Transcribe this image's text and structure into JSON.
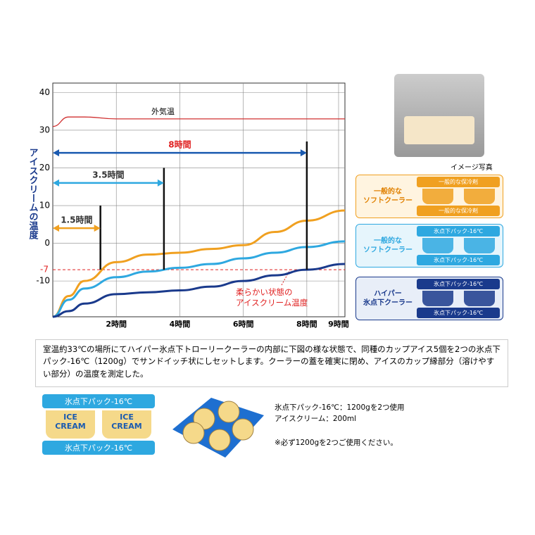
{
  "chart_data": {
    "type": "line",
    "y_label": "アイスクリームの温度",
    "x": [
      0,
      0.5,
      1,
      2,
      3,
      4,
      5,
      6,
      7,
      8,
      9.2
    ],
    "xlim": [
      0,
      9.2
    ],
    "ylim": [
      -19.5,
      42.5
    ],
    "xticks": [
      {
        "value": 2,
        "label": "2時間"
      },
      {
        "value": 4,
        "label": "4時間"
      },
      {
        "value": 6,
        "label": "6時間"
      },
      {
        "value": 8,
        "label": "8時間"
      },
      {
        "value": 9,
        "label": "9時間"
      }
    ],
    "yticks": [
      -10,
      0,
      10,
      20,
      30,
      40
    ],
    "grid": true,
    "reference": {
      "value": -7,
      "label": "-7",
      "color": "#e02020",
      "annotation": "柔らかい状態の\nアイスクリーム温度"
    },
    "series": [
      {
        "name": "外気温",
        "color": "#d03030",
        "values": [
          31,
          33.5,
          33.5,
          33,
          33,
          33,
          33,
          33,
          33,
          33,
          33
        ]
      },
      {
        "name": "一般的な\nソフトクーラー",
        "color": "#f0a020",
        "values": [
          -19.5,
          -14,
          -10,
          -5,
          -3,
          -2.5,
          -1.5,
          -0.5,
          3,
          6,
          8.7
        ],
        "packs": [
          "一般的な保冷剤",
          "一般的な保冷剤"
        ]
      },
      {
        "name": "一般的な\nソフトクーラー",
        "color": "#2ea8e0",
        "values": [
          -19.5,
          -15,
          -12,
          -9,
          -7.5,
          -6.5,
          -5.5,
          -4,
          -2.5,
          -1,
          0.5
        ],
        "packs": [
          "氷点下パック-16℃",
          "氷点下パック-16℃"
        ]
      },
      {
        "name": "ハイパー\n氷点下クーラー",
        "color": "#1a3a8c",
        "values": [
          -19.5,
          -18,
          -16,
          -13.5,
          -13,
          -12.5,
          -11.5,
          -10,
          -8.5,
          -7,
          -5.5
        ],
        "packs": [
          "氷点下パック-16℃",
          "氷点下パック-16℃"
        ]
      }
    ],
    "durations": [
      {
        "label": "1.5時間",
        "hours": 1.5,
        "top": 10,
        "arrow_y": 4,
        "color": "#f0a020"
      },
      {
        "label": "3.5時間",
        "hours": 3.5,
        "top": 20,
        "arrow_y": 16,
        "color": "#2ea8e0"
      },
      {
        "label": "8時間",
        "hours": 8,
        "top": 27,
        "arrow_y": 24,
        "color": "#1a5ab0",
        "label_color": "#e02020"
      }
    ]
  },
  "photo_caption": "イメージ写真",
  "description": "室温約33℃の場所にてハイパー氷点下トローリークーラーの内部に下図の様な状態で、同種のカップアイス5個を2つの氷点下パック-16℃（1200g）でサンドイッチ状にしセットします。クーラーの蓋を確実に閉め、アイスのカップ縁部分（溶けやすい部分）の温度を測定した。",
  "diagram": {
    "pack_top": "氷点下パック-16℃",
    "pack_bottom": "氷点下パック-16℃",
    "cup_label": "ICE\nCREAM"
  },
  "specs": [
    "氷点下パック-16℃：1200gを2つ使用",
    "アイスクリーム：200ml"
  ],
  "note": "※必ず1200gを2つご使用ください。"
}
